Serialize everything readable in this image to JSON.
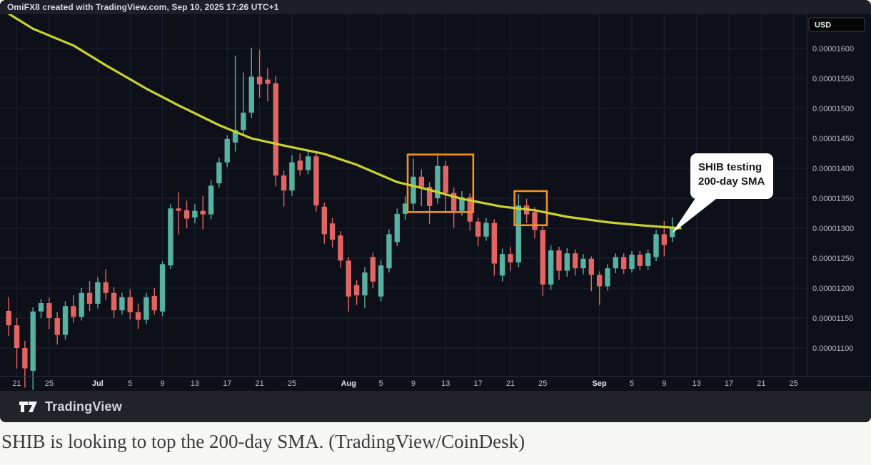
{
  "header": {
    "attribution": "OmiFX8 created with TradingView.com, Sep 10, 2025 17:26 UTC+1"
  },
  "footer": {
    "brand": "TradingView"
  },
  "caption": {
    "text": "SHIB is looking to top the 200-day SMA. (TradingView/CoinDesk)"
  },
  "price_axis": {
    "currency_label": "USD",
    "ticks": [
      {
        "value": 1600,
        "label": "0.00001600"
      },
      {
        "value": 1550,
        "label": "0.00001550"
      },
      {
        "value": 1500,
        "label": "0.00001500"
      },
      {
        "value": 1450,
        "label": "0.00001450"
      },
      {
        "value": 1400,
        "label": "0.00001400"
      },
      {
        "value": 1350,
        "label": "0.00001350"
      },
      {
        "value": 1300,
        "label": "0.00001300"
      },
      {
        "value": 1250,
        "label": "0.00001250"
      },
      {
        "value": 1200,
        "label": "0.00001200"
      },
      {
        "value": 1150,
        "label": "0.00001150"
      },
      {
        "value": 1100,
        "label": "0.00001100"
      }
    ]
  },
  "time_axis": {
    "labels": [
      {
        "text": "21",
        "day_index": 1,
        "bold": false
      },
      {
        "text": "25",
        "day_index": 5,
        "bold": false
      },
      {
        "text": "Jul",
        "day_index": 11,
        "bold": true
      },
      {
        "text": "5",
        "day_index": 15,
        "bold": false
      },
      {
        "text": "9",
        "day_index": 19,
        "bold": false
      },
      {
        "text": "13",
        "day_index": 23,
        "bold": false
      },
      {
        "text": "17",
        "day_index": 27,
        "bold": false
      },
      {
        "text": "21",
        "day_index": 31,
        "bold": false
      },
      {
        "text": "25",
        "day_index": 35,
        "bold": false
      },
      {
        "text": "Aug",
        "day_index": 42,
        "bold": true
      },
      {
        "text": "5",
        "day_index": 46,
        "bold": false
      },
      {
        "text": "9",
        "day_index": 50,
        "bold": false
      },
      {
        "text": "13",
        "day_index": 54,
        "bold": false
      },
      {
        "text": "17",
        "day_index": 58,
        "bold": false
      },
      {
        "text": "21",
        "day_index": 62,
        "bold": false
      },
      {
        "text": "25",
        "day_index": 66,
        "bold": false
      },
      {
        "text": "Sep",
        "day_index": 73,
        "bold": true
      },
      {
        "text": "5",
        "day_index": 77,
        "bold": false
      },
      {
        "text": "9",
        "day_index": 81,
        "bold": false
      },
      {
        "text": "13",
        "day_index": 85,
        "bold": false
      },
      {
        "text": "17",
        "day_index": 89,
        "bold": false
      },
      {
        "text": "21",
        "day_index": 93,
        "bold": false
      },
      {
        "text": "25",
        "day_index": 97,
        "bold": false
      }
    ]
  },
  "annotations": {
    "callout": {
      "line1": "SHIB testing",
      "line2": "200-day SMA",
      "anchor_day": "Sep 10",
      "anchor_price": 1310
    }
  },
  "colors": {
    "background": "#0d1018",
    "header_bg": "#1c1f29",
    "footer_bg": "#212329",
    "grid": "#1d2231",
    "separator": "#2a2e3a",
    "axis_text": "#b7bac4",
    "axis_text_bold": "#e2e4e9",
    "up": "#57b2a2",
    "down": "#e26564",
    "sma": "#cbd22f",
    "highlight": "#f1931c",
    "callout_bg": "#ffffff",
    "callout_text": "#17191d",
    "badge_bg": "#060607",
    "badge_border": "#3a3e48",
    "badge_text": "#e8e9ec",
    "caption_bg": "#f7f7f4",
    "caption_text": "#3a3c3d"
  },
  "chart_data": {
    "type": "candlestick",
    "symbol": "SHIB / USD",
    "title": "SHIB testing 200-day SMA",
    "price_unit": "USD, values stored as price x 1e8 (1300 = 0.00001300)",
    "visible_price_range": [
      1030,
      1665
    ],
    "grid": true,
    "candles_ohlc": [
      [
        "Jun 20",
        1162,
        1185,
        1120,
        1138
      ],
      [
        "Jun 21",
        1138,
        1150,
        1066,
        1100
      ],
      [
        "Jun 22",
        1100,
        1112,
        1034,
        1066
      ],
      [
        "Jun 23",
        1062,
        1168,
        1030,
        1161
      ],
      [
        "Jun 24",
        1161,
        1182,
        1150,
        1175
      ],
      [
        "Jun 25",
        1175,
        1184,
        1132,
        1150
      ],
      [
        "Jun 26",
        1150,
        1160,
        1106,
        1122
      ],
      [
        "Jun 27",
        1122,
        1178,
        1114,
        1170
      ],
      [
        "Jun 28",
        1170,
        1188,
        1142,
        1152
      ],
      [
        "Jun 29",
        1152,
        1200,
        1146,
        1192
      ],
      [
        "Jun 30",
        1192,
        1212,
        1162,
        1174
      ],
      [
        "Jul 1",
        1174,
        1218,
        1166,
        1210
      ],
      [
        "Jul 2",
        1210,
        1232,
        1180,
        1192
      ],
      [
        "Jul 3",
        1192,
        1202,
        1150,
        1163
      ],
      [
        "Jul 4",
        1163,
        1192,
        1156,
        1185
      ],
      [
        "Jul 5",
        1185,
        1198,
        1148,
        1160
      ],
      [
        "Jul 6",
        1160,
        1174,
        1132,
        1147
      ],
      [
        "Jul 7",
        1147,
        1192,
        1140,
        1185
      ],
      [
        "Jul 8",
        1187,
        1200,
        1156,
        1163
      ],
      [
        "Jul 9",
        1161,
        1245,
        1153,
        1240
      ],
      [
        "Jul 10",
        1238,
        1340,
        1232,
        1333
      ],
      [
        "Jul 11",
        1333,
        1360,
        1290,
        1329
      ],
      [
        "Jul 12",
        1330,
        1346,
        1300,
        1316
      ],
      [
        "Jul 13",
        1318,
        1340,
        1308,
        1329
      ],
      [
        "Jul 14",
        1329,
        1354,
        1298,
        1323
      ],
      [
        "Jul 15",
        1323,
        1380,
        1315,
        1371
      ],
      [
        "Jul 16",
        1375,
        1418,
        1368,
        1410
      ],
      [
        "Jul 17",
        1410,
        1455,
        1402,
        1449
      ],
      [
        "Jul 18",
        1443,
        1588,
        1428,
        1464
      ],
      [
        "Jul 19",
        1464,
        1560,
        1456,
        1493
      ],
      [
        "Jul 20",
        1493,
        1601,
        1484,
        1553
      ],
      [
        "Jul 21",
        1553,
        1598,
        1518,
        1540
      ],
      [
        "Jul 22",
        1548,
        1567,
        1512,
        1541
      ],
      [
        "Jul 23",
        1542,
        1554,
        1370,
        1388
      ],
      [
        "Jul 24",
        1388,
        1396,
        1336,
        1363
      ],
      [
        "Jul 25",
        1363,
        1422,
        1354,
        1410
      ],
      [
        "Jul 26",
        1413,
        1425,
        1388,
        1397
      ],
      [
        "Jul 27",
        1397,
        1431,
        1390,
        1420
      ],
      [
        "Jul 28",
        1420,
        1427,
        1328,
        1338
      ],
      [
        "Jul 29",
        1336,
        1343,
        1274,
        1290
      ],
      [
        "Jul 30",
        1308,
        1317,
        1268,
        1281
      ],
      [
        "Jul 31",
        1288,
        1295,
        1234,
        1246
      ],
      [
        "Aug 1",
        1246,
        1252,
        1161,
        1186
      ],
      [
        "Aug 2",
        1205,
        1213,
        1172,
        1188
      ],
      [
        "Aug 3",
        1188,
        1235,
        1167,
        1226
      ],
      [
        "Aug 4",
        1252,
        1259,
        1200,
        1211
      ],
      [
        "Aug 5",
        1186,
        1247,
        1178,
        1238
      ],
      [
        "Aug 6",
        1233,
        1298,
        1226,
        1290
      ],
      [
        "Aug 7",
        1277,
        1333,
        1270,
        1324
      ],
      [
        "Aug 8",
        1324,
        1353,
        1314,
        1341
      ],
      [
        "Aug 9",
        1341,
        1416,
        1330,
        1386
      ],
      [
        "Aug 10",
        1386,
        1398,
        1337,
        1369
      ],
      [
        "Aug 11",
        1369,
        1377,
        1307,
        1337
      ],
      [
        "Aug 12",
        1350,
        1421,
        1341,
        1404
      ],
      [
        "Aug 13",
        1404,
        1412,
        1328,
        1359
      ],
      [
        "Aug 14",
        1359,
        1368,
        1301,
        1329
      ],
      [
        "Aug 15",
        1329,
        1362,
        1321,
        1352
      ],
      [
        "Aug 16",
        1352,
        1358,
        1296,
        1311
      ],
      [
        "Aug 17",
        1311,
        1318,
        1270,
        1286
      ],
      [
        "Aug 18",
        1286,
        1317,
        1279,
        1309
      ],
      [
        "Aug 19",
        1309,
        1315,
        1221,
        1241
      ],
      [
        "Aug 20",
        1221,
        1266,
        1211,
        1257
      ],
      [
        "Aug 21",
        1257,
        1269,
        1229,
        1243
      ],
      [
        "Aug 22",
        1243,
        1357,
        1235,
        1338
      ],
      [
        "Aug 23",
        1338,
        1349,
        1309,
        1323
      ],
      [
        "Aug 24",
        1327,
        1335,
        1283,
        1297
      ],
      [
        "Aug 25",
        1297,
        1303,
        1187,
        1206
      ],
      [
        "Aug 26",
        1206,
        1271,
        1197,
        1263
      ],
      [
        "Aug 27",
        1263,
        1269,
        1214,
        1229
      ],
      [
        "Aug 28",
        1229,
        1267,
        1219,
        1258
      ],
      [
        "Aug 29",
        1258,
        1265,
        1221,
        1233
      ],
      [
        "Aug 30",
        1233,
        1257,
        1223,
        1249
      ],
      [
        "Aug 31",
        1249,
        1253,
        1195,
        1222
      ],
      [
        "Sep 1",
        1222,
        1228,
        1172,
        1203
      ],
      [
        "Sep 2",
        1203,
        1240,
        1196,
        1233
      ],
      [
        "Sep 3",
        1233,
        1258,
        1225,
        1252
      ],
      [
        "Sep 4",
        1252,
        1258,
        1224,
        1232
      ],
      [
        "Sep 5",
        1232,
        1262,
        1226,
        1256
      ],
      [
        "Sep 6",
        1256,
        1262,
        1230,
        1237
      ],
      [
        "Sep 7",
        1237,
        1264,
        1231,
        1258
      ],
      [
        "Sep 8",
        1252,
        1297,
        1245,
        1290
      ],
      [
        "Sep 9",
        1290,
        1312,
        1253,
        1272
      ],
      [
        "Sep 10",
        1285,
        1318,
        1277,
        1303
      ]
    ],
    "sma": {
      "name": "200-day SMA",
      "points_day_value": [
        [
          -1,
          1666
        ],
        [
          0,
          1658
        ],
        [
          3,
          1633
        ],
        [
          8,
          1605
        ],
        [
          12,
          1572
        ],
        [
          17,
          1533
        ],
        [
          21,
          1505
        ],
        [
          26,
          1472
        ],
        [
          30,
          1450
        ],
        [
          34,
          1438
        ],
        [
          39,
          1424
        ],
        [
          43,
          1406
        ],
        [
          48,
          1377
        ],
        [
          52,
          1364
        ],
        [
          56,
          1349
        ],
        [
          61,
          1336
        ],
        [
          65,
          1330
        ],
        [
          69,
          1319
        ],
        [
          74,
          1310
        ],
        [
          78,
          1305
        ],
        [
          82,
          1301
        ],
        [
          83,
          1300
        ]
      ]
    },
    "highlight_boxes": [
      {
        "from_day": "Aug 8",
        "to_day": "Aug 16",
        "from_index": 49.3,
        "to_index": 57.4,
        "price_top": 1423,
        "price_bottom": 1327
      },
      {
        "from_day": "Aug 21",
        "to_day": "Aug 25",
        "from_index": 62.5,
        "to_index": 66.5,
        "price_top": 1362,
        "price_bottom": 1305
      }
    ]
  }
}
